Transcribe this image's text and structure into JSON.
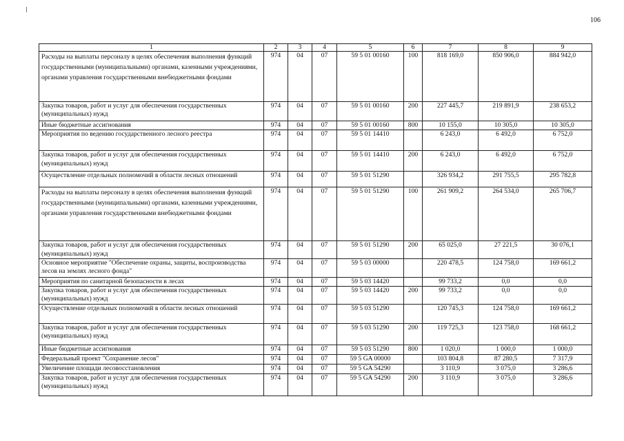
{
  "page_number": "106",
  "table": {
    "headers": [
      "1",
      "2",
      "3",
      "4",
      "5",
      "6",
      "7",
      "8",
      "9"
    ],
    "rows": [
      {
        "name": "Расходы на выплаты персоналу в целях обеспечения выполнения функций государственными (муниципальными) органами, казенными учреждениями, органами управления государственными внебюджетными фондами",
        "c2": "974",
        "c3": "04",
        "c4": "07",
        "c5": "59 5 01 00160",
        "c6": "100",
        "c7": "818 169,0",
        "c8": "850 906,0",
        "c9": "884 942,0"
      },
      {
        "name": "Закупка товаров, работ и услуг для обеспечения государственных (муниципальных) нужд",
        "c2": "974",
        "c3": "04",
        "c4": "07",
        "c5": "59 5 01 00160",
        "c6": "200",
        "c7": "227 445,7",
        "c8": "219 891,9",
        "c9": "238 653,2"
      },
      {
        "name": "Иные бюджетные ассигнования",
        "c2": "974",
        "c3": "04",
        "c4": "07",
        "c5": "59 5 01 00160",
        "c6": "800",
        "c7": "10 155,0",
        "c8": "10 305,0",
        "c9": "10 305,0"
      },
      {
        "name": "Мероприятия по ведению государственного лесного реестра",
        "c2": "974",
        "c3": "04",
        "c4": "07",
        "c5": "59 5 01 14410",
        "c6": "",
        "c7": "6 243,0",
        "c8": "6 492,0",
        "c9": "6 752,0"
      },
      {
        "name": "Закупка товаров, работ и услуг для обеспечения государственных (муниципальных) нужд",
        "c2": "974",
        "c3": "04",
        "c4": "07",
        "c5": "59 5 01 14410",
        "c6": "200",
        "c7": "6 243,0",
        "c8": "6 492,0",
        "c9": "6 752,0"
      },
      {
        "name": "Осуществление отдельных полномочий в области лесных отношений",
        "c2": "974",
        "c3": "04",
        "c4": "07",
        "c5": "59 5 01 51290",
        "c6": "",
        "c7": "326 934,2",
        "c8": "291 755,5",
        "c9": "295 782,8"
      },
      {
        "name": "Расходы на выплаты персоналу в целях обеспечения выполнения функций государственными (муниципальными) органами, казенными учреждениями, органами управления государственными внебюджетными фондами",
        "c2": "974",
        "c3": "04",
        "c4": "07",
        "c5": "59 5 01 51290",
        "c6": "100",
        "c7": "261 909,2",
        "c8": "264 534,0",
        "c9": "265 706,7"
      },
      {
        "name": "Закупка товаров, работ и услуг для обеспечения государственных (муниципальных) нужд",
        "c2": "974",
        "c3": "04",
        "c4": "07",
        "c5": "59 5 01 51290",
        "c6": "200",
        "c7": "65 025,0",
        "c8": "27 221,5",
        "c9": "30 076,1"
      },
      {
        "name": "Основное мероприятие \"Обеспечение охраны, защиты, воспроизводства лесов на землях лесного фонда\"",
        "c2": "974",
        "c3": "04",
        "c4": "07",
        "c5": "59 5 03 00000",
        "c6": "",
        "c7": "220 478,5",
        "c8": "124 758,0",
        "c9": "169 661,2"
      },
      {
        "name": "Мероприятия по санитарной безопасности в лесах",
        "c2": "974",
        "c3": "04",
        "c4": "07",
        "c5": "59 5 03 14420",
        "c6": "",
        "c7": "99 733,2",
        "c8": "0,0",
        "c9": "0,0"
      },
      {
        "name": "Закупка товаров, работ и услуг для обеспечения государственных (муниципальных) нужд",
        "c2": "974",
        "c3": "04",
        "c4": "07",
        "c5": "59 5 03 14420",
        "c6": "200",
        "c7": "99 733,2",
        "c8": "0,0",
        "c9": "0,0"
      },
      {
        "name": "Осуществление отдельных полномочий в области лесных отношений",
        "c2": "974",
        "c3": "04",
        "c4": "07",
        "c5": "59 5 03 51290",
        "c6": "",
        "c7": "120 745,3",
        "c8": "124 758,0",
        "c9": "169 661,2"
      },
      {
        "name": "Закупка товаров, работ и услуг для обеспечения государственных (муниципальных) нужд",
        "c2": "974",
        "c3": "04",
        "c4": "07",
        "c5": "59 5 03 51290",
        "c6": "200",
        "c7": "119 725,3",
        "c8": "123 758,0",
        "c9": "168 661,2"
      },
      {
        "name": "Иные бюджетные ассигнования",
        "c2": "974",
        "c3": "04",
        "c4": "07",
        "c5": "59 5 03 51290",
        "c6": "800",
        "c7": "1 020,0",
        "c8": "1 000,0",
        "c9": "1 000,0"
      },
      {
        "name": "Федеральный проект \"Сохранение лесов\"",
        "c2": "974",
        "c3": "04",
        "c4": "07",
        "c5": "59 5 GA 00000",
        "c6": "",
        "c7": "103 804,8",
        "c8": "87 280,5",
        "c9": "7 317,9"
      },
      {
        "name": "Увеличение площади лесовосстановления",
        "c2": "974",
        "c3": "04",
        "c4": "07",
        "c5": "59 5 GA 54290",
        "c6": "",
        "c7": "3 110,9",
        "c8": "3 075,0",
        "c9": "3 286,6"
      },
      {
        "name": "Закупка товаров, работ и услуг для обеспечения государственных (муниципальных) нужд",
        "c2": "974",
        "c3": "04",
        "c4": "07",
        "c5": "59 5 GA 54290",
        "c6": "200",
        "c7": "3 110,9",
        "c8": "3 075,0",
        "c9": "3 286,6"
      }
    ]
  }
}
